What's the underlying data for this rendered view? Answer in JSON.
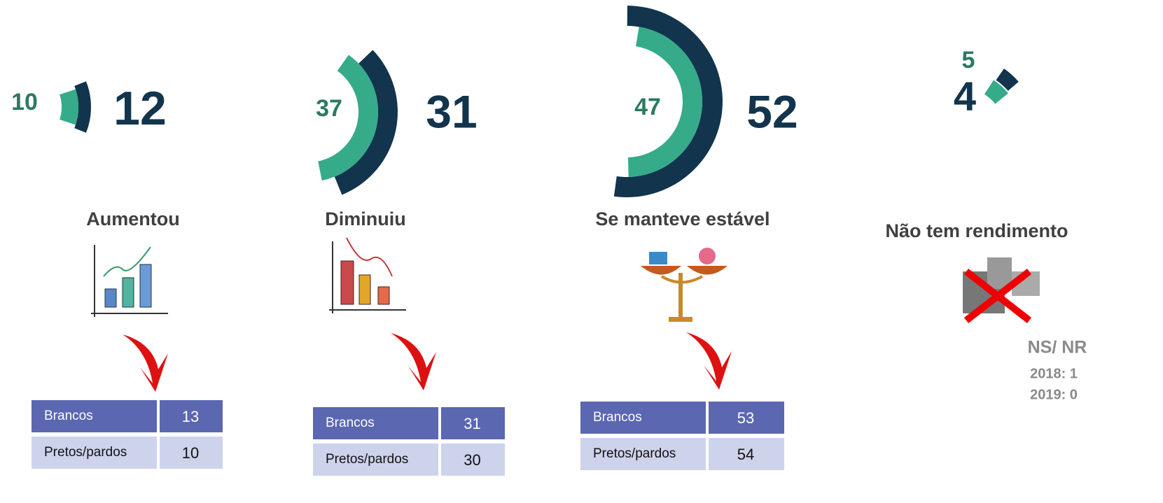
{
  "groups": [
    {
      "label": "Aumentou",
      "inner": 10,
      "outer": 12,
      "table": [
        [
          "Brancos",
          13
        ],
        [
          "Pretos/pardos",
          10
        ]
      ]
    },
    {
      "label": "Diminuiu",
      "inner": 37,
      "outer": 31,
      "table": [
        [
          "Brancos",
          31
        ],
        [
          "Pretos/pardos",
          30
        ]
      ]
    },
    {
      "label": "Se manteve estável",
      "inner": 47,
      "outer": 52,
      "table": [
        [
          "Brancos",
          53
        ],
        [
          "Pretos/pardos",
          54
        ]
      ]
    },
    {
      "label": "Não tem rendimento",
      "inner": 5,
      "outer": 4
    }
  ],
  "colors": {
    "inner": "#35ab8a",
    "outer": "#12344d",
    "inner_label": "#2b7a5f",
    "header": "#5b67b1",
    "row": "#ced3ec"
  },
  "ns_nr": {
    "title": "NS/ NR",
    "lines": [
      "2018: 1",
      "2019: 0"
    ]
  }
}
